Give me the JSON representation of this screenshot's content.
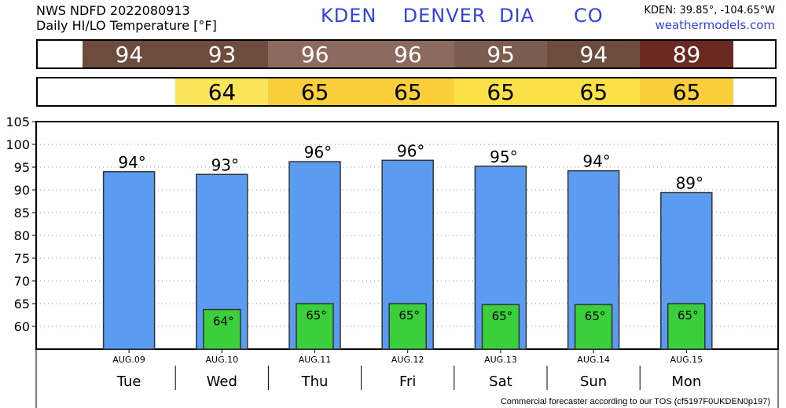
{
  "header": {
    "line1": "NWS NDFD 2022080913",
    "line2": "Daily HI/LO Temperature [°F]",
    "station": "KDEN  DENVER DIA   CO",
    "coords": "KDEN: 39.85°, -104.65°W",
    "site": "weathermodels.com"
  },
  "footer": "Commercial forecaster according to our TOS (cf5197F0UKDEN0p197)",
  "colors": {
    "bar_high": "#5b9cf0",
    "bar_low": "#3ccf3c",
    "high_band": [
      "#6d4c3d",
      "#6f4d3e",
      "#8c6b5e",
      "#8c6b5e",
      "#7d5d50",
      "#6d4c3d",
      "#6a2a22"
    ],
    "low_band": [
      "#fbe55a",
      "#fbcf3c",
      "#fbcf3c",
      "#fbe047",
      "#fbe047",
      "#fbcf3c"
    ]
  },
  "chart_data": {
    "type": "bar",
    "categories": [
      "AUG.09",
      "AUG.10",
      "AUG.11",
      "AUG.12",
      "AUG.13",
      "AUG.14",
      "AUG.15"
    ],
    "days": [
      "Tue",
      "Wed",
      "Thu",
      "Fri",
      "Sat",
      "Sun",
      "Mon"
    ],
    "series": [
      {
        "values": [
          94,
          93.4,
          96.2,
          96.5,
          95.2,
          94.2,
          89.4
        ],
        "labels": [
          "94°",
          "93°",
          "96°",
          "96°",
          "95°",
          "94°",
          "89°"
        ]
      },
      {
        "values": [
          null,
          63.7,
          65,
          65,
          64.8,
          64.8,
          65
        ],
        "labels": [
          "",
          "64°",
          "65°",
          "65°",
          "65°",
          "65°",
          "65°"
        ]
      }
    ],
    "band_high": [
      "94",
      "93",
      "96",
      "96",
      "95",
      "94",
      "89"
    ],
    "band_low": [
      "",
      "64",
      "65",
      "65",
      "65",
      "65",
      "65"
    ],
    "yticks": [
      "60",
      "65",
      "70",
      "75",
      "80",
      "85",
      "90",
      "95",
      "100",
      "105"
    ],
    "ylim": [
      55,
      105
    ],
    "grid": true
  }
}
